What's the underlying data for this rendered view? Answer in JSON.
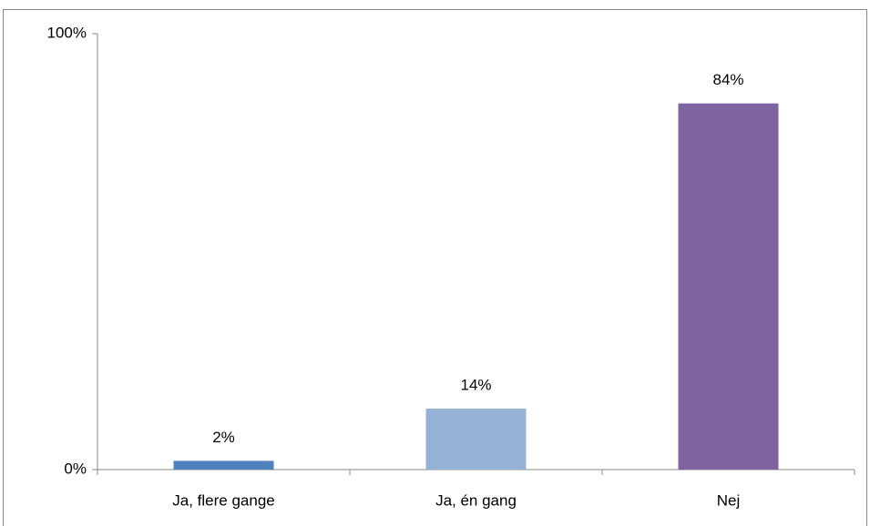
{
  "chart_data": {
    "type": "bar",
    "categories": [
      "Ja, flere gange",
      "Ja, én gang",
      "Nej"
    ],
    "values": [
      2,
      14,
      84
    ],
    "value_labels": [
      "2%",
      "14%",
      "84%"
    ],
    "colors": [
      "#4f81bd",
      "#95b3d7",
      "#8064a2"
    ],
    "ylim": [
      0,
      100
    ],
    "yticks": [
      {
        "value": 0,
        "label": "0%"
      },
      {
        "value": 100,
        "label": "100%"
      }
    ]
  }
}
